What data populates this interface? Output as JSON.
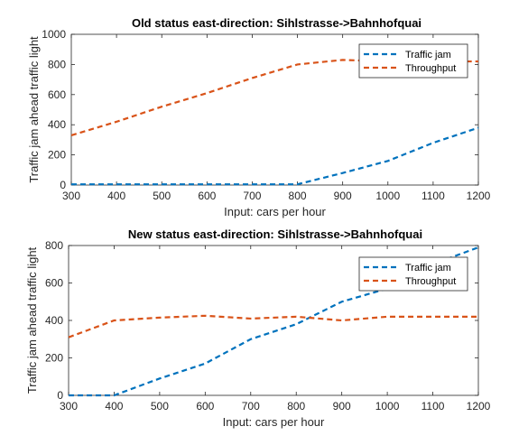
{
  "colors": {
    "traffic_jam": "#0072BD",
    "throughput": "#D95319"
  },
  "chart_data": [
    {
      "type": "line",
      "title": "Old status east-direction: Sihlstrasse->Bahnhofquai",
      "xlabel": "Input: cars per hour",
      "ylabel": "Traffic jam ahead traffic light",
      "xlim": [
        300,
        1200
      ],
      "ylim": [
        0,
        1000
      ],
      "xticks": [
        300,
        400,
        500,
        600,
        700,
        800,
        900,
        1000,
        1100,
        1200
      ],
      "yticks": [
        0,
        200,
        400,
        600,
        800,
        1000
      ],
      "legend": "top-right",
      "x": [
        300,
        400,
        500,
        600,
        700,
        800,
        900,
        1000,
        1100,
        1200
      ],
      "series": [
        {
          "name": "Traffic jam",
          "values": [
            5,
            5,
            5,
            5,
            5,
            5,
            80,
            160,
            280,
            380
          ]
        },
        {
          "name": "Throughput",
          "values": [
            330,
            420,
            520,
            610,
            710,
            800,
            830,
            820,
            820,
            820
          ]
        }
      ]
    },
    {
      "type": "line",
      "title": "New status east-direction: Sihlstrasse->Bahnhofquai",
      "xlabel": "Input: cars per hour",
      "ylabel": "Traffic jam ahead traffic light",
      "xlim": [
        300,
        1200
      ],
      "ylim": [
        0,
        800
      ],
      "xticks": [
        300,
        400,
        500,
        600,
        700,
        800,
        900,
        1000,
        1100,
        1200
      ],
      "yticks": [
        0,
        200,
        400,
        600,
        800
      ],
      "legend": "top-right",
      "x": [
        300,
        400,
        500,
        600,
        700,
        800,
        900,
        1000,
        1100,
        1200
      ],
      "series": [
        {
          "name": "Traffic jam",
          "values": [
            0,
            0,
            90,
            170,
            300,
            380,
            500,
            570,
            700,
            790
          ]
        },
        {
          "name": "Throughput",
          "values": [
            310,
            400,
            415,
            425,
            410,
            420,
            400,
            420,
            420,
            420
          ]
        }
      ]
    }
  ]
}
